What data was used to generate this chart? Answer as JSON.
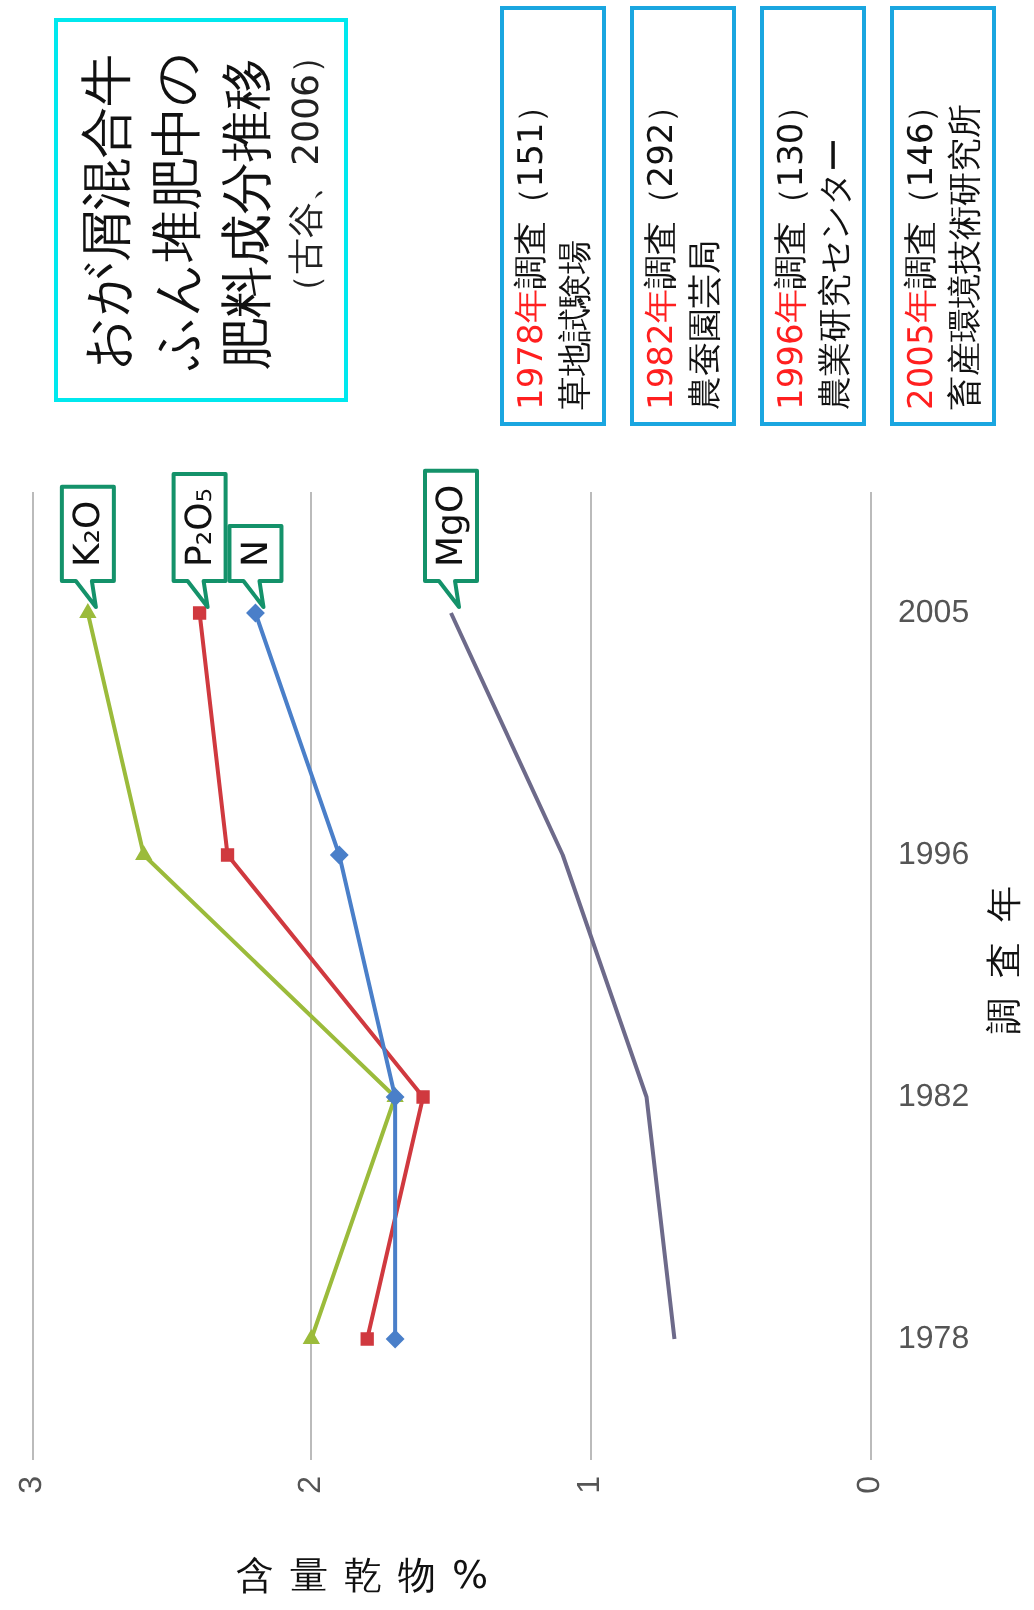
{
  "chart_data": {
    "type": "line",
    "orientation": "horizontal",
    "title": "おが屑混合牛ふん堆肥中の肥料成分推移",
    "subtitle": "（古谷、2006）",
    "xlabel": "含量乾物%",
    "ylabel": "調査年",
    "categories": [
      "2005",
      "1996",
      "1982",
      "1978"
    ],
    "series": [
      {
        "name": "K₂O",
        "color": "#9bbb3b",
        "marker": "triangle",
        "values": [
          2.8,
          2.6,
          1.7,
          2.0
        ]
      },
      {
        "name": "P₂O₅",
        "color": "#d0393f",
        "marker": "square",
        "values": [
          2.4,
          2.3,
          1.6,
          1.8
        ]
      },
      {
        "name": "N",
        "color": "#4a7fc9",
        "marker": "diamond",
        "values": [
          2.2,
          1.9,
          1.7,
          1.7
        ]
      },
      {
        "name": "MgO",
        "color": "#6d6a8a",
        "marker": "none",
        "values": [
          1.5,
          1.1,
          0.8,
          0.7
        ]
      }
    ],
    "xlim": [
      3,
      0
    ],
    "xticks": [
      3,
      2,
      1,
      0
    ],
    "grid": "x",
    "line_style": "solid",
    "annotations": [
      "1978年調査（151）",
      "草地試験場",
      "1982年調査（292）",
      "農蚕園芸局",
      "1996年調査（130）",
      "農業研究センター",
      "2005年調査（146）",
      "畜産環境技術研究所"
    ]
  }
}
